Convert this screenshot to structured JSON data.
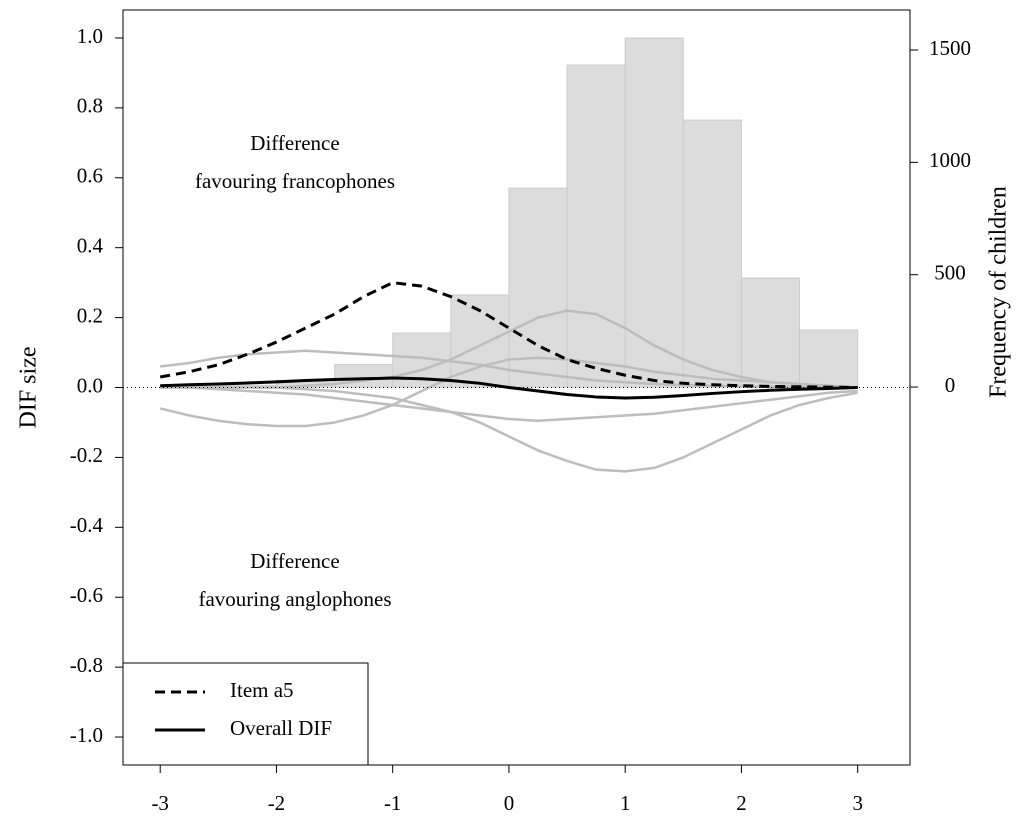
{
  "chart_data": {
    "type": "line",
    "ylabel": "DIF size",
    "y2label": "Frequency of children",
    "xlim": [
      -3.32,
      3.45
    ],
    "xticks": [
      -3,
      -2,
      -1,
      0,
      1,
      2,
      3
    ],
    "ylim": [
      -1.08,
      1.08
    ],
    "yticks": [
      {
        "value": -1.0,
        "label": "-1.0"
      },
      -0.8,
      -0.6,
      -0.4,
      -0.2,
      {
        "value": 0,
        "label": "0.0"
      },
      0.2,
      0.4,
      0.6,
      0.8,
      {
        "value": 1.0,
        "label": "1.0"
      }
    ],
    "y2lim": [
      -1682,
      1678
    ],
    "y2ticks": [
      0,
      500,
      1000,
      1500
    ],
    "zero_line": true,
    "legend": "bottom-left",
    "annotations": [
      {
        "lines": [
          "Difference",
          "favouring francophones"
        ]
      },
      {
        "lines": [
          "Difference",
          "favouring anglophones"
        ]
      }
    ],
    "histogram": {
      "axis": "y2",
      "color": "#dcdcdc",
      "bins": [
        -3,
        -2.5,
        -2,
        -1.5,
        -1,
        -0.5,
        0,
        0.5,
        1,
        1.5,
        2,
        2.5,
        3
      ],
      "counts": [
        3,
        8,
        30,
        100,
        240,
        410,
        885,
        1433,
        1553,
        1188,
        485,
        254
      ]
    },
    "x": [
      -3,
      -2.75,
      -2.5,
      -2.25,
      -2,
      -1.75,
      -1.5,
      -1.25,
      -1,
      -0.75,
      -0.5,
      -0.25,
      0,
      0.25,
      0.5,
      0.75,
      1,
      1.25,
      1.5,
      1.75,
      2,
      2.25,
      2.5,
      2.75,
      3
    ],
    "series": [
      {
        "color": "#bdbdbd",
        "values": [
          0,
          0,
          0,
          0,
          0,
          0.005,
          0.01,
          0.02,
          0.03,
          0.05,
          0.08,
          0.12,
          0.16,
          0.2,
          0.22,
          0.21,
          0.17,
          0.12,
          0.08,
          0.05,
          0.03,
          0.015,
          0.01,
          0.005,
          0
        ]
      },
      {
        "color": "#bdbdbd",
        "values": [
          0,
          0,
          0,
          0,
          0,
          -0.005,
          -0.01,
          -0.02,
          -0.03,
          -0.05,
          -0.07,
          -0.1,
          -0.14,
          -0.18,
          -0.21,
          -0.235,
          -0.24,
          -0.23,
          -0.2,
          -0.16,
          -0.12,
          -0.08,
          -0.05,
          -0.03,
          -0.015
        ]
      },
      {
        "color": "#bdbdbd",
        "values": [
          0.06,
          0.07,
          0.085,
          0.095,
          0.1,
          0.105,
          0.1,
          0.095,
          0.09,
          0.085,
          0.075,
          0.065,
          0.05,
          0.04,
          0.03,
          0.02,
          0.015,
          0.01,
          0.007,
          0.005,
          0.003,
          0.002,
          0.001,
          0,
          0
        ]
      },
      {
        "color": "#bdbdbd",
        "values": [
          -0.06,
          -0.08,
          -0.095,
          -0.105,
          -0.11,
          -0.11,
          -0.1,
          -0.08,
          -0.05,
          -0.01,
          0.03,
          0.06,
          0.08,
          0.085,
          0.08,
          0.07,
          0.06,
          0.045,
          0.035,
          0.025,
          0.02,
          0.015,
          0.01,
          0.005,
          0
        ]
      },
      {
        "color": "#bdbdbd",
        "values": [
          0,
          0,
          -0.005,
          -0.01,
          -0.015,
          -0.02,
          -0.03,
          -0.04,
          -0.05,
          -0.06,
          -0.07,
          -0.08,
          -0.09,
          -0.095,
          -0.09,
          -0.085,
          -0.08,
          -0.075,
          -0.065,
          -0.055,
          -0.045,
          -0.035,
          -0.025,
          -0.015,
          -0.01
        ]
      },
      {
        "name": "Item a5",
        "color": "#000000",
        "dashed": true,
        "values": [
          0.03,
          0.045,
          0.065,
          0.095,
          0.13,
          0.17,
          0.21,
          0.26,
          0.3,
          0.29,
          0.26,
          0.22,
          0.17,
          0.12,
          0.08,
          0.055,
          0.035,
          0.02,
          0.012,
          0.008,
          0.005,
          0.003,
          0.002,
          0.001,
          0
        ]
      },
      {
        "name": "Overall DIF",
        "color": "#000000",
        "dashed": false,
        "values": [
          0.005,
          0.008,
          0.01,
          0.013,
          0.016,
          0.02,
          0.023,
          0.025,
          0.027,
          0.025,
          0.02,
          0.012,
          0,
          -0.01,
          -0.02,
          -0.027,
          -0.03,
          -0.028,
          -0.023,
          -0.017,
          -0.012,
          -0.008,
          -0.005,
          -0.003,
          0
        ]
      }
    ]
  }
}
